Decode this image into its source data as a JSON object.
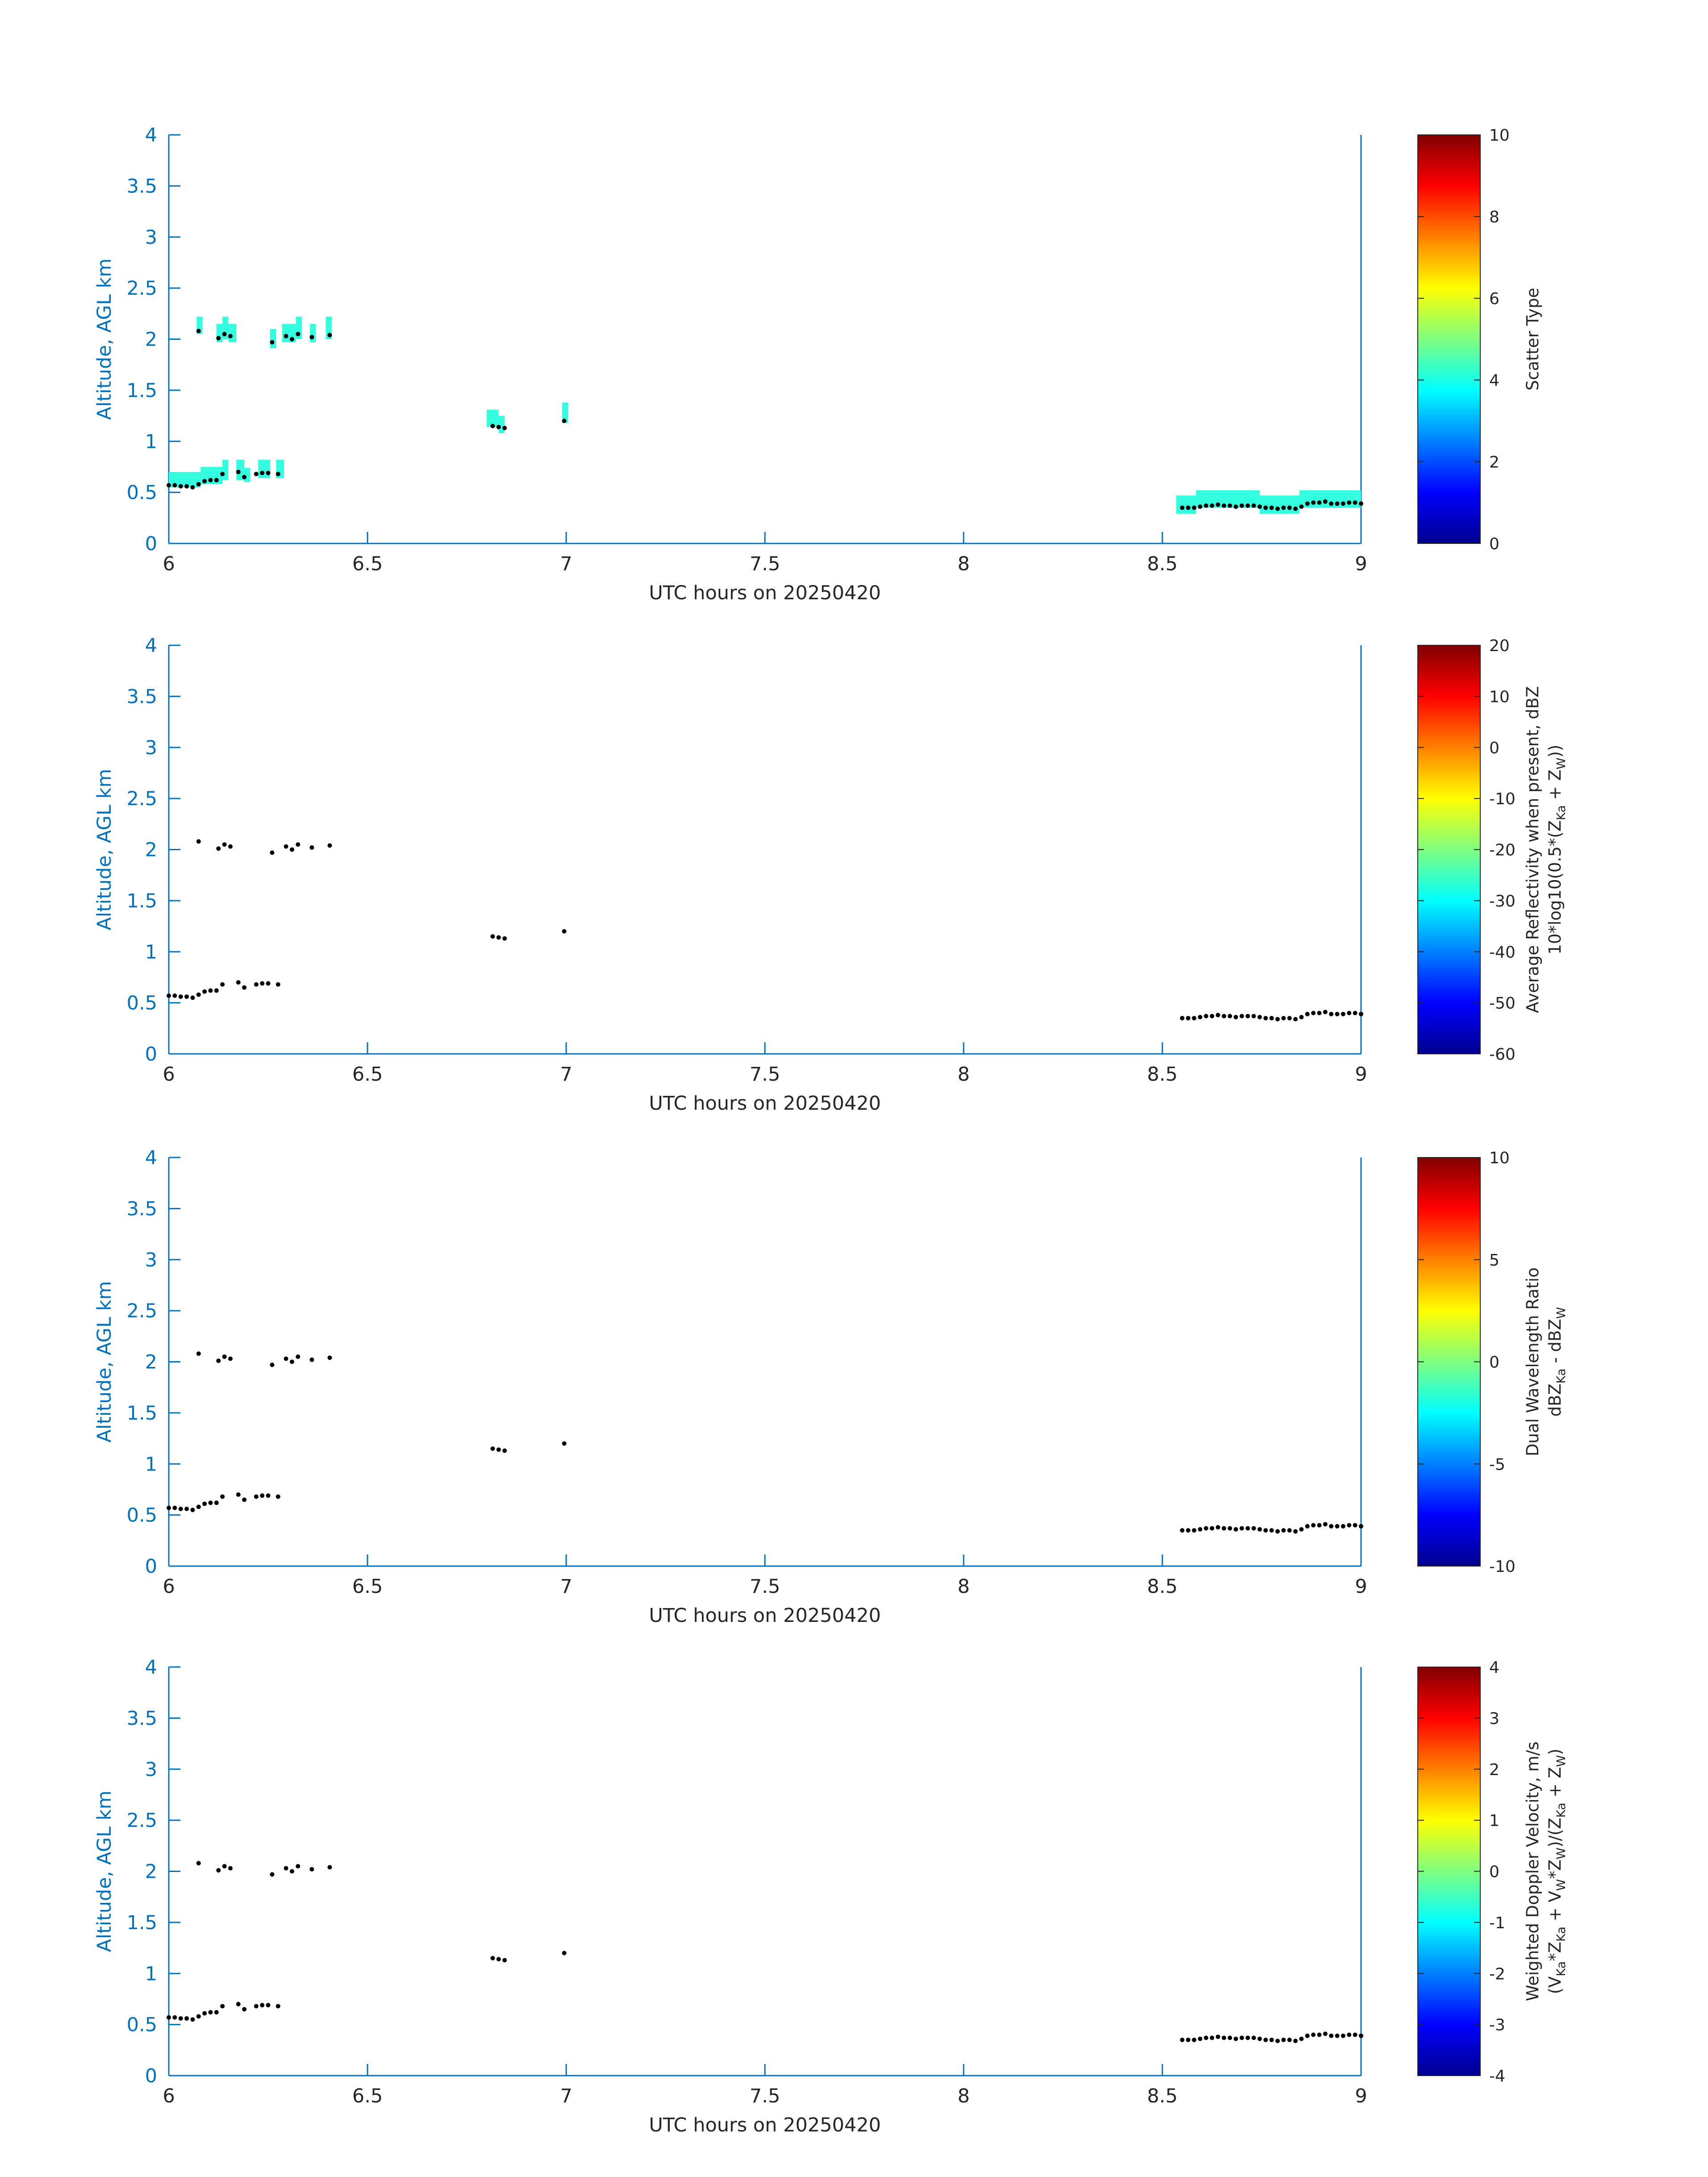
{
  "colors": {
    "axis": "#0072BD",
    "text": "#262626",
    "scatter_fill": "#33FFE0",
    "marker": "#000000"
  },
  "chart_data": [
    {
      "type": "scatter",
      "xlabel": "UTC hours on 20250420",
      "ylabel": "Altitude, AGL km",
      "xlim": [
        6,
        9
      ],
      "ylim": [
        0,
        4
      ],
      "xticks": [
        "6",
        "6.5",
        "7",
        "7.5",
        "8",
        "8.5",
        "9"
      ],
      "yticks": [
        "0",
        "0.5",
        "1",
        "1.5",
        "2",
        "2.5",
        "3",
        "3.5",
        "4"
      ],
      "colorbar": {
        "label_lines": [
          "Scatter Type"
        ],
        "cmin": 0,
        "cmax": 10,
        "ticks": [
          "0",
          "2",
          "4",
          "6",
          "8",
          "10"
        ]
      },
      "fill_segments": [
        {
          "x0": 6.0,
          "x1": 6.08,
          "y0": 0.55,
          "y1": 0.7
        },
        {
          "x0": 6.08,
          "x1": 6.135,
          "y0": 0.58,
          "y1": 0.75
        },
        {
          "x0": 6.135,
          "x1": 6.15,
          "y0": 0.62,
          "y1": 0.82
        },
        {
          "x0": 6.17,
          "x1": 6.19,
          "y0": 0.62,
          "y1": 0.82
        },
        {
          "x0": 6.19,
          "x1": 6.205,
          "y0": 0.6,
          "y1": 0.74
        },
        {
          "x0": 6.225,
          "x1": 6.255,
          "y0": 0.64,
          "y1": 0.82
        },
        {
          "x0": 6.27,
          "x1": 6.29,
          "y0": 0.64,
          "y1": 0.82
        },
        {
          "x0": 6.07,
          "x1": 6.085,
          "y0": 2.05,
          "y1": 2.22
        },
        {
          "x0": 6.12,
          "x1": 6.135,
          "y0": 1.97,
          "y1": 2.15
        },
        {
          "x0": 6.135,
          "x1": 6.15,
          "y0": 2.0,
          "y1": 2.22
        },
        {
          "x0": 6.15,
          "x1": 6.17,
          "y0": 1.97,
          "y1": 2.15
        },
        {
          "x0": 6.255,
          "x1": 6.27,
          "y0": 1.91,
          "y1": 2.1
        },
        {
          "x0": 6.285,
          "x1": 6.32,
          "y0": 1.97,
          "y1": 2.15
        },
        {
          "x0": 6.32,
          "x1": 6.335,
          "y0": 2.0,
          "y1": 2.22
        },
        {
          "x0": 6.355,
          "x1": 6.37,
          "y0": 1.97,
          "y1": 2.15
        },
        {
          "x0": 6.395,
          "x1": 6.41,
          "y0": 2.0,
          "y1": 2.22
        },
        {
          "x0": 6.8,
          "x1": 6.83,
          "y0": 1.14,
          "y1": 1.31
        },
        {
          "x0": 6.83,
          "x1": 6.845,
          "y0": 1.08,
          "y1": 1.25
        },
        {
          "x0": 6.99,
          "x1": 7.005,
          "y0": 1.18,
          "y1": 1.38
        },
        {
          "x0": 8.535,
          "x1": 8.585,
          "y0": 0.29,
          "y1": 0.47
        },
        {
          "x0": 8.585,
          "x1": 8.745,
          "y0": 0.35,
          "y1": 0.52
        },
        {
          "x0": 8.745,
          "x1": 8.845,
          "y0": 0.29,
          "y1": 0.47
        },
        {
          "x0": 8.845,
          "x1": 9.0,
          "y0": 0.35,
          "y1": 0.52
        }
      ],
      "points_ref": "cloud_points"
    },
    {
      "type": "scatter",
      "xlabel": "UTC hours on 20250420",
      "ylabel": "Altitude, AGL km",
      "xlim": [
        6,
        9
      ],
      "ylim": [
        0,
        4
      ],
      "xticks": [
        "6",
        "6.5",
        "7",
        "7.5",
        "8",
        "8.5",
        "9"
      ],
      "yticks": [
        "0",
        "0.5",
        "1",
        "1.5",
        "2",
        "2.5",
        "3",
        "3.5",
        "4"
      ],
      "colorbar": {
        "label_lines": [
          "Average Reflectivity when present, dBZ",
          "10*log10(0.5*(Z<sub>Ka</sub> + Z<sub>W</sub>))"
        ],
        "cmin": -60,
        "cmax": 20,
        "ticks": [
          "-60",
          "-50",
          "-40",
          "-30",
          "-20",
          "-10",
          "0",
          "10",
          "20"
        ]
      },
      "fill_segments": [],
      "points_ref": "cloud_points"
    },
    {
      "type": "scatter",
      "xlabel": "UTC hours on 20250420",
      "ylabel": "Altitude, AGL km",
      "xlim": [
        6,
        9
      ],
      "ylim": [
        0,
        4
      ],
      "xticks": [
        "6",
        "6.5",
        "7",
        "7.5",
        "8",
        "8.5",
        "9"
      ],
      "yticks": [
        "0",
        "0.5",
        "1",
        "1.5",
        "2",
        "2.5",
        "3",
        "3.5",
        "4"
      ],
      "colorbar": {
        "label_lines": [
          "Dual Wavelength Ratio",
          "dBZ<sub>Ka</sub> - dBZ<sub>W</sub>"
        ],
        "cmin": -10,
        "cmax": 10,
        "ticks": [
          "-10",
          "-5",
          "0",
          "5",
          "10"
        ]
      },
      "fill_segments": [],
      "points_ref": "cloud_points"
    },
    {
      "type": "scatter",
      "xlabel": "UTC hours on 20250420",
      "ylabel": "Altitude, AGL km",
      "xlim": [
        6,
        9
      ],
      "ylim": [
        0,
        4
      ],
      "xticks": [
        "6",
        "6.5",
        "7",
        "7.5",
        "8",
        "8.5",
        "9"
      ],
      "yticks": [
        "0",
        "0.5",
        "1",
        "1.5",
        "2",
        "2.5",
        "3",
        "3.5",
        "4"
      ],
      "colorbar": {
        "label_lines": [
          "Weighted Doppler Velocity, m/s",
          "(V<sub>Ka</sub>*Z<sub>Ka</sub> + V<sub>W</sub>*Z<sub>W</sub>)/(Z<sub>Ka</sub> + Z<sub>W</sub>)"
        ],
        "cmin": -4,
        "cmax": 4,
        "ticks": [
          "-4",
          "-3",
          "-2",
          "-1",
          "0",
          "1",
          "2",
          "3",
          "4"
        ]
      },
      "fill_segments": [],
      "points_ref": "cloud_points"
    }
  ],
  "cloud_points": [
    [
      6.0,
      0.57
    ],
    [
      6.015,
      0.57
    ],
    [
      6.03,
      0.56
    ],
    [
      6.045,
      0.56
    ],
    [
      6.06,
      0.55
    ],
    [
      6.075,
      0.58
    ],
    [
      6.09,
      0.61
    ],
    [
      6.105,
      0.62
    ],
    [
      6.12,
      0.62
    ],
    [
      6.135,
      0.68
    ],
    [
      6.175,
      0.7
    ],
    [
      6.19,
      0.65
    ],
    [
      6.22,
      0.68
    ],
    [
      6.235,
      0.69
    ],
    [
      6.25,
      0.69
    ],
    [
      6.275,
      0.68
    ],
    [
      6.075,
      2.08
    ],
    [
      6.125,
      2.01
    ],
    [
      6.14,
      2.05
    ],
    [
      6.155,
      2.03
    ],
    [
      6.26,
      1.97
    ],
    [
      6.295,
      2.03
    ],
    [
      6.31,
      2.0
    ],
    [
      6.325,
      2.05
    ],
    [
      6.36,
      2.02
    ],
    [
      6.405,
      2.04
    ],
    [
      6.815,
      1.15
    ],
    [
      6.83,
      1.14
    ],
    [
      6.845,
      1.13
    ],
    [
      6.995,
      1.2
    ],
    [
      8.55,
      0.35
    ],
    [
      8.565,
      0.35
    ],
    [
      8.58,
      0.35
    ],
    [
      8.595,
      0.36
    ],
    [
      8.61,
      0.37
    ],
    [
      8.625,
      0.37
    ],
    [
      8.64,
      0.38
    ],
    [
      8.655,
      0.37
    ],
    [
      8.67,
      0.37
    ],
    [
      8.685,
      0.36
    ],
    [
      8.7,
      0.37
    ],
    [
      8.715,
      0.37
    ],
    [
      8.73,
      0.37
    ],
    [
      8.745,
      0.36
    ],
    [
      8.76,
      0.35
    ],
    [
      8.775,
      0.35
    ],
    [
      8.79,
      0.34
    ],
    [
      8.805,
      0.35
    ],
    [
      8.82,
      0.35
    ],
    [
      8.835,
      0.34
    ],
    [
      8.85,
      0.36
    ],
    [
      8.865,
      0.39
    ],
    [
      8.88,
      0.4
    ],
    [
      8.895,
      0.4
    ],
    [
      8.91,
      0.41
    ],
    [
      8.925,
      0.39
    ],
    [
      8.94,
      0.39
    ],
    [
      8.955,
      0.39
    ],
    [
      8.97,
      0.4
    ],
    [
      8.985,
      0.4
    ],
    [
      9.0,
      0.39
    ]
  ]
}
